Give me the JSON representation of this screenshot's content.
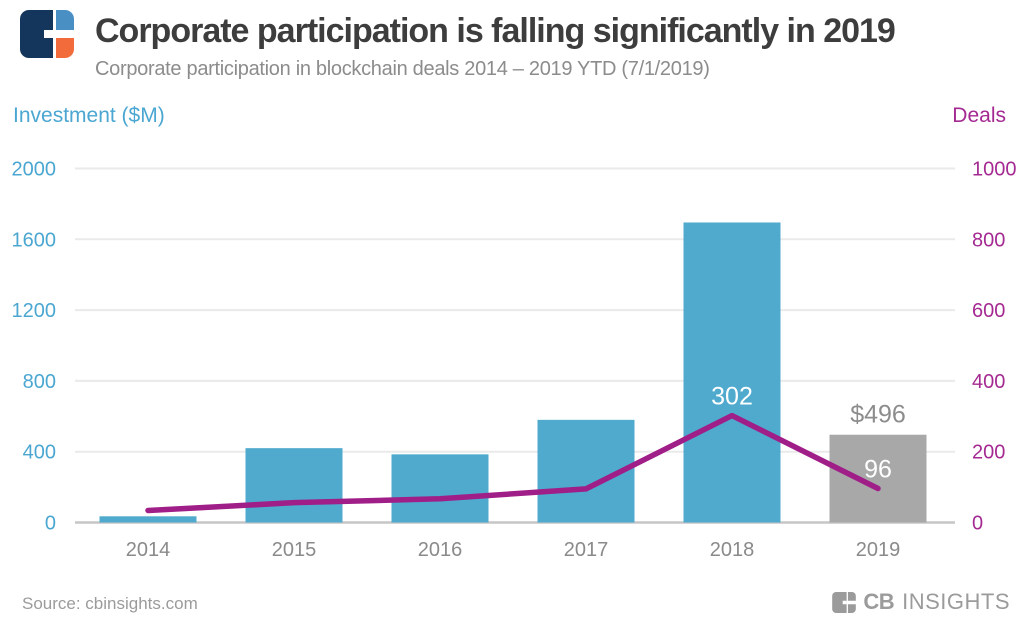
{
  "header": {
    "title": "Corporate participation is falling significantly in 2019",
    "subtitle": "Corporate participation in blockchain deals 2014 – 2019 YTD (7/1/2019)"
  },
  "footer": {
    "source": "Source: cbinsights.com",
    "brand_bold": "CB",
    "brand_light": "INSIGHTS"
  },
  "logo_colors": {
    "navy": "#14365c",
    "blue": "#4a8fc4",
    "orange": "#f26b3b",
    "gray": "#9b9b9b"
  },
  "chart_data": {
    "type": "combo-bar-line",
    "categories": [
      "2014",
      "2015",
      "2016",
      "2017",
      "2018",
      "2019"
    ],
    "series": [
      {
        "name": "Investment ($M)",
        "type": "bar",
        "axis": "left",
        "values": [
          35,
          420,
          385,
          580,
          1695,
          496
        ],
        "color": "#4faace",
        "highlight_index": 5,
        "highlight_color": "#a8a8a8"
      },
      {
        "name": "Deals",
        "type": "line",
        "axis": "right",
        "values": [
          34,
          56,
          67,
          95,
          302,
          96
        ],
        "color": "#a01e88"
      }
    ],
    "left_axis": {
      "title": "Investment ($M)",
      "ticks": [
        2000,
        1600,
        1200,
        800,
        400,
        0
      ],
      "range": [
        0,
        2000
      ],
      "color": "#4ba7d1"
    },
    "right_axis": {
      "title": "Deals",
      "ticks": [
        1000,
        800,
        600,
        400,
        200,
        0
      ],
      "range": [
        0,
        1000
      ],
      "color": "#a42a92"
    },
    "annotations": [
      {
        "target": "line",
        "index": 4,
        "text": "302",
        "color": "#ffffff"
      },
      {
        "target": "line",
        "index": 5,
        "text": "96",
        "color": "#ffffff"
      },
      {
        "target": "bar",
        "index": 5,
        "text": "$496",
        "color": "#8c8c8c"
      }
    ],
    "grid": {
      "color": "#eaeaea",
      "zero_color": "#c6c6c6"
    },
    "x_label_color": "#8a8a8a",
    "legend": "none"
  }
}
